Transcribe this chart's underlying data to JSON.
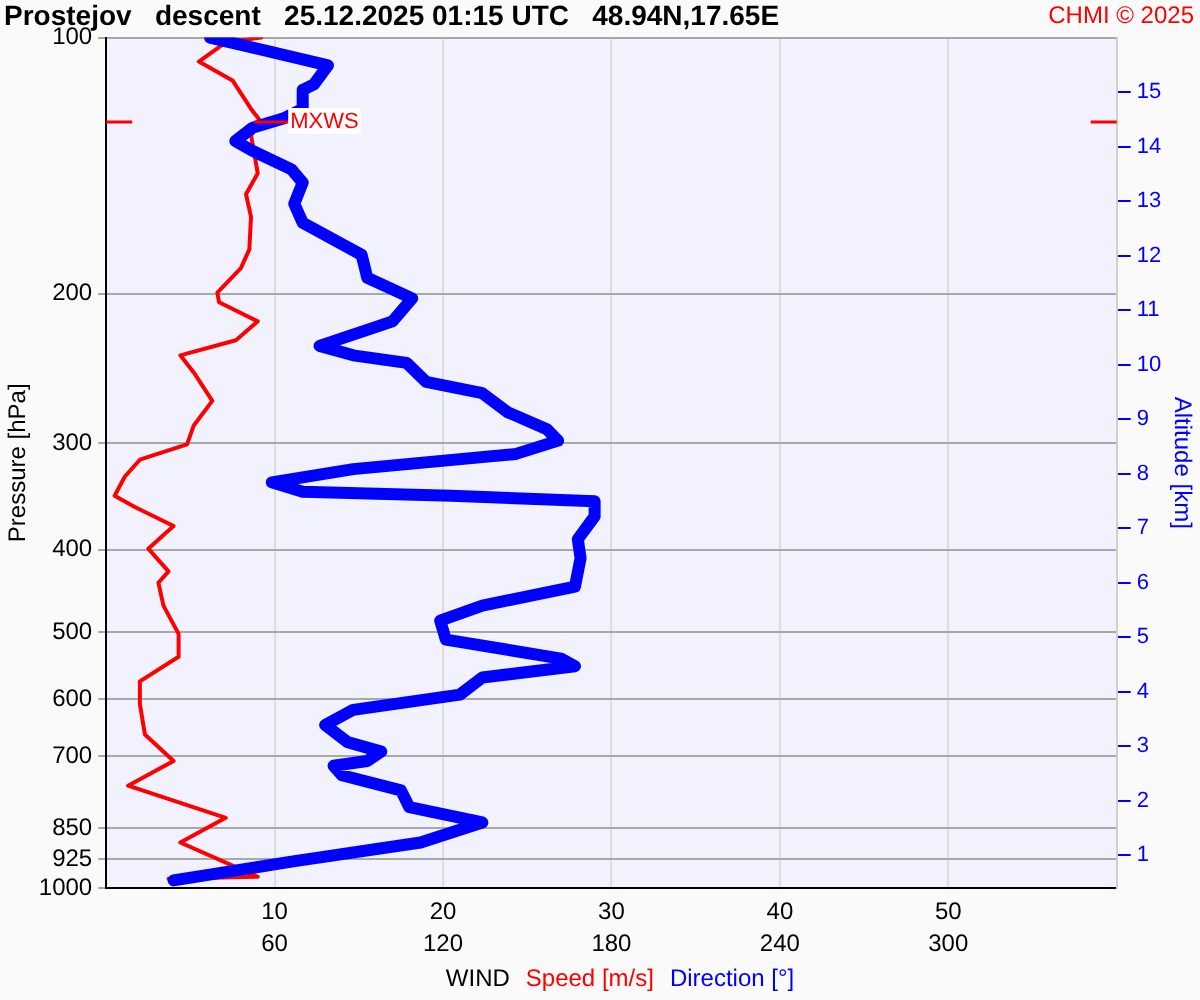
{
  "chart_data": {
    "type": "line",
    "title": "Prostejov   descent   25.12.2025 01:15 UTC   48.94N,17.65E",
    "xlabel": "WIND",
    "ylabel": "Pressure [hPa]",
    "y2label": "Altitude [km]",
    "annotations": [
      "CHMI © 2025"
    ],
    "xlim": [
      0,
      60
    ],
    "xticks": [
      10,
      20,
      30,
      40,
      50
    ],
    "x2lim": [
      0,
      360
    ],
    "x2ticks": [
      60,
      120,
      180,
      240,
      300
    ],
    "ylim": [
      1000,
      100
    ],
    "yticks": [
      100,
      200,
      300,
      400,
      500,
      600,
      700,
      850,
      925,
      1000
    ],
    "y2lim": [
      0.4,
      16
    ],
    "y2ticks": [
      1,
      2,
      3,
      4,
      5,
      6,
      7,
      8,
      9,
      10,
      11,
      12,
      13,
      14,
      15
    ],
    "log": "y",
    "grid": true,
    "legend": "bottom",
    "marker": "none",
    "line_style": "solid",
    "ref_lines": [
      {
        "axis": "y",
        "value": 125.7,
        "label": "MXWS",
        "color": "#ff0000"
      }
    ],
    "series": [
      {
        "name": "Speed [m/s]",
        "color": "#ff0000",
        "x": [
          9.2,
          7.1,
          5.5,
          7.5,
          8.6,
          9.2,
          8.6,
          9.0,
          8.3,
          8.6,
          8.5,
          8.0,
          6.6,
          6.7,
          9.0,
          7.7,
          4.4,
          5.2,
          6.3,
          5.2,
          4.8,
          2.0,
          1.1,
          0.5,
          1.7,
          4.0,
          2.5,
          3.7,
          3.1,
          3.4,
          4.3,
          4.3,
          2.0,
          2.0,
          2.3,
          4.0,
          1.3,
          7.1,
          4.4,
          9.0,
          3.7
        ],
        "values": [
          100,
          101.3,
          106.7,
          112.3,
          121.3,
          125.7,
          130.3,
          144.4,
          152.8,
          162.5,
          177.4,
          186.7,
          199.5,
          204.7,
          215.6,
          226.9,
          236.4,
          247.6,
          267.4,
          285.8,
          300.9,
          313.6,
          328.4,
          345.7,
          356.5,
          375.3,
          399,
          424.3,
          437.6,
          465.5,
          502.6,
          534.7,
          571.6,
          607.9,
          660,
          709,
          758,
          827,
          884,
          970,
          975
        ]
      },
      {
        "name": "Direction [°]",
        "color": "#0000ff",
        "axis": "x2",
        "x": [
          37,
          79,
          74,
          70,
          70,
          63,
          52,
          46,
          52,
          66,
          70,
          67,
          70,
          91,
          93,
          109,
          102,
          76,
          88,
          107,
          114,
          134,
          143,
          157,
          161,
          146,
          88,
          59,
          70,
          123,
          174,
          174,
          168,
          169,
          167,
          134,
          119,
          121,
          162,
          167,
          134,
          126,
          88,
          78,
          86,
          98,
          93,
          81,
          84,
          105,
          108,
          134,
          112,
          66,
          24
        ],
        "values": [
          100,
          107.8,
          113.5,
          115.2,
          121.3,
          124.5,
          127.7,
          132.3,
          135.8,
          142.9,
          148.1,
          156.8,
          165.1,
          180.1,
          191.6,
          202.6,
          215.6,
          230.4,
          236.4,
          241.3,
          254,
          261.9,
          275.7,
          288.8,
          297.8,
          308.7,
          321.7,
          333.4,
          342.1,
          345.7,
          351,
          365.6,
          388.9,
          409.3,
          442.2,
          465.5,
          484.9,
          510.4,
          537.3,
          548.5,
          565.6,
          592.4,
          617.3,
          643.2,
          673.7,
          691.2,
          709,
          718.2,
          736.9,
          767.8,
          803.6,
          837.4,
          884,
          931,
          979.7
        ]
      }
    ]
  }
}
